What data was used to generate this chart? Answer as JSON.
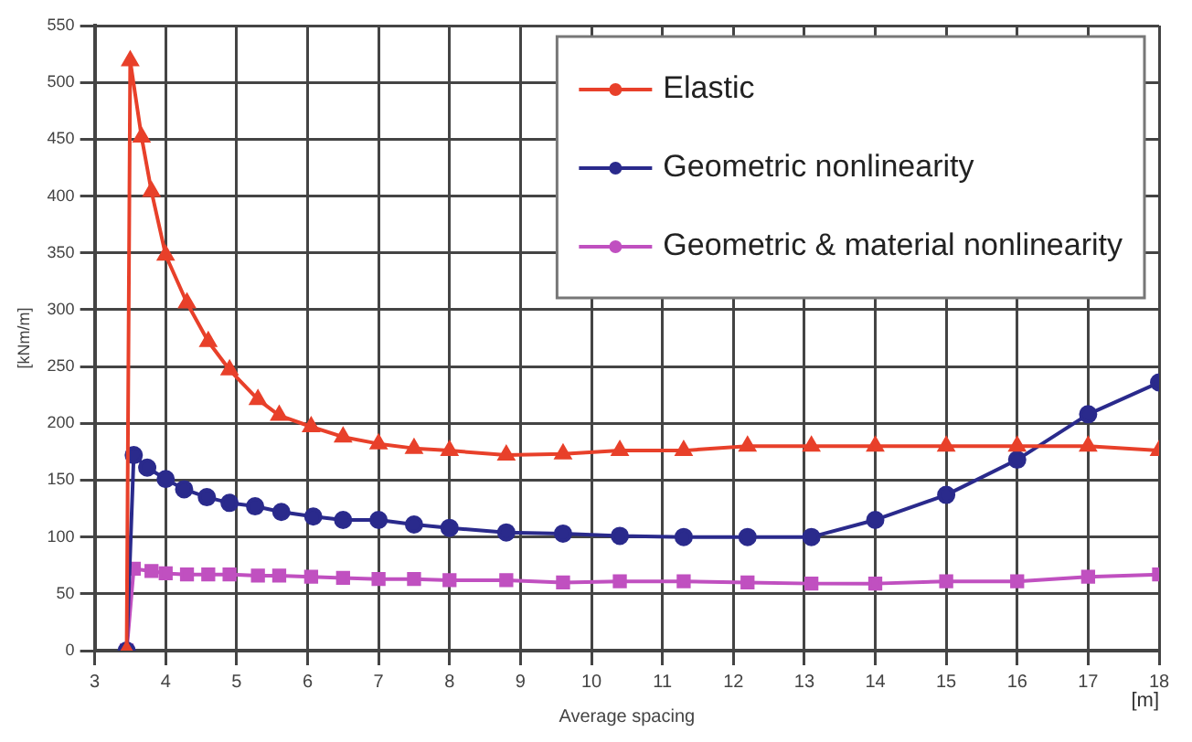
{
  "chart_data": {
    "type": "line",
    "xlabel": "Average spacing",
    "ylabel": "[kNm/m]",
    "annotations": [
      "[m]"
    ],
    "xlim": [
      3,
      18
    ],
    "xticks": [
      3,
      4,
      5,
      6,
      7,
      8,
      9,
      10,
      11,
      12,
      13,
      14,
      15,
      16,
      17,
      18
    ],
    "ylim": [
      0,
      550
    ],
    "yticks": [
      0,
      50,
      100,
      150,
      200,
      250,
      300,
      350,
      400,
      450,
      500,
      550
    ],
    "grid": true,
    "legend": "top right",
    "line_style": "solid",
    "series": [
      {
        "name": "Elastic",
        "color": "#e8402a",
        "marker": "triangle",
        "x": [
          3.45,
          3.5,
          3.66,
          3.8,
          4.0,
          4.3,
          4.6,
          4.9,
          5.3,
          5.6,
          6.05,
          6.5,
          7.0,
          7.5,
          8,
          8.8,
          9.6,
          10.4,
          11.3,
          12.2,
          13.1,
          14,
          15,
          16,
          17,
          18
        ],
        "values": [
          0,
          519,
          452,
          404,
          348,
          306,
          272,
          247,
          221,
          207,
          197,
          188,
          182,
          178,
          176,
          172,
          173,
          176,
          176,
          180,
          180,
          180,
          180,
          180,
          180,
          176
        ]
      },
      {
        "name": "Geometric nonlinearity",
        "color": "#2a2a8c",
        "marker": "circle",
        "x": [
          3.45,
          3.55,
          3.74,
          4.0,
          4.26,
          4.58,
          4.9,
          5.26,
          5.63,
          6.08,
          6.5,
          7.0,
          7.5,
          8,
          8.8,
          9.6,
          10.4,
          11.3,
          12.2,
          13.1,
          14,
          15,
          16,
          17,
          18
        ],
        "values": [
          0,
          172,
          161,
          151,
          142,
          135,
          130,
          127,
          122,
          118,
          115,
          115,
          111,
          108,
          104,
          103,
          101,
          100,
          100,
          100,
          115,
          137,
          168,
          208,
          236
        ]
      },
      {
        "name": "Geometric & material nonlinearity",
        "color": "#c050c0",
        "marker": "square",
        "x": [
          3.45,
          3.55,
          3.8,
          4.0,
          4.3,
          4.6,
          4.9,
          5.3,
          5.6,
          6.05,
          6.5,
          7.0,
          7.5,
          8,
          8.8,
          9.6,
          10.4,
          11.3,
          12.2,
          13.1,
          14,
          15,
          16,
          17,
          18
        ],
        "values": [
          0,
          72,
          70,
          68,
          67,
          67,
          67,
          66,
          66,
          65,
          64,
          63,
          63,
          62,
          62,
          60,
          61,
          61,
          60,
          59,
          59,
          61,
          61,
          65,
          67
        ]
      }
    ]
  }
}
